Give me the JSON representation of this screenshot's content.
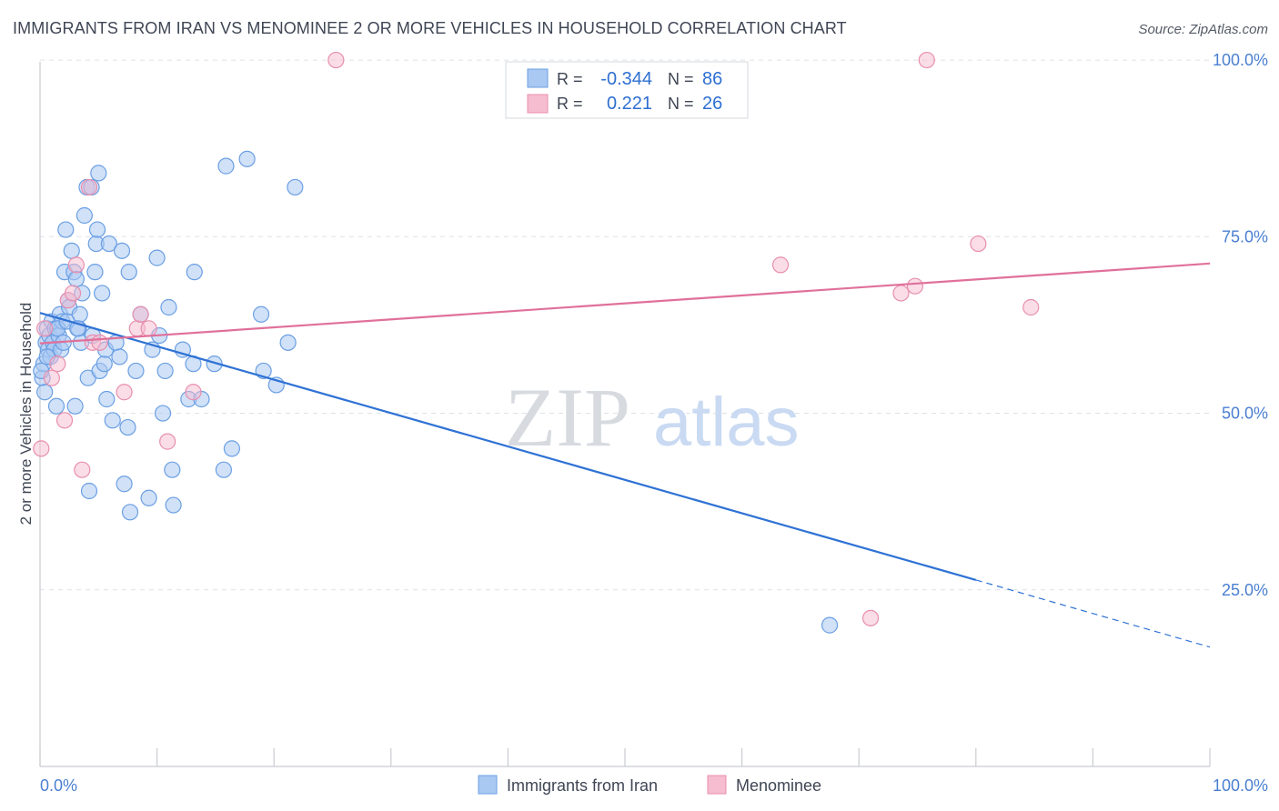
{
  "header": {
    "title": "IMMIGRANTS FROM IRAN VS MENOMINEE 2 OR MORE VEHICLES IN HOUSEHOLD CORRELATION CHART",
    "source": "Source: ZipAtlas.com"
  },
  "watermark": {
    "part1": "ZIP",
    "part2": "atlas"
  },
  "legend": {
    "rows": [
      {
        "r_label": "R =",
        "r_value": "-0.344",
        "n_label": "N =",
        "n_value": "86"
      },
      {
        "r_label": "R =",
        "r_value": "0.221",
        "n_label": "N =",
        "n_value": "26"
      }
    ]
  },
  "colors": {
    "iran_fill": "#a9c8f2",
    "iran_stroke": "#6b9fe3",
    "iran_line": "#2f72d4",
    "menominee_fill": "#f6bcd0",
    "menominee_stroke": "#e88fae",
    "menominee_line": "#e0709a",
    "tick_text": "#4a7fd0",
    "grid": "#dde1e7"
  },
  "chart_data": {
    "type": "scatter",
    "title": "IMMIGRANTS FROM IRAN VS MENOMINEE 2 OR MORE VEHICLES IN HOUSEHOLD CORRELATION CHART",
    "xlabel": "",
    "ylabel": "2 or more Vehicles in Household",
    "xlim": [
      0,
      100
    ],
    "ylim": [
      0,
      104
    ],
    "y_ticks": [
      {
        "value": 25,
        "label": "25.0%"
      },
      {
        "value": 50,
        "label": "50.0%"
      },
      {
        "value": 75,
        "label": "75.0%"
      },
      {
        "value": 100,
        "label": "100.0%"
      }
    ],
    "x_tick_labels": {
      "left": "0.0%",
      "right": "100.0%"
    },
    "x_minor_ticks": [
      0,
      10,
      20,
      30,
      40,
      50,
      60,
      70,
      80,
      90,
      100
    ],
    "grid": true,
    "legend_position": "top-center",
    "series": [
      {
        "name": "Immigrants from Iran",
        "points": [
          [
            0.2,
            55
          ],
          [
            0.4,
            53
          ],
          [
            0.3,
            57
          ],
          [
            0.5,
            60
          ],
          [
            0.6,
            62
          ],
          [
            0.7,
            59
          ],
          [
            0.8,
            61
          ],
          [
            0.9,
            58
          ],
          [
            1.0,
            63
          ],
          [
            1.1,
            60
          ],
          [
            1.2,
            59
          ],
          [
            1.3,
            62
          ],
          [
            1.4,
            51
          ],
          [
            1.6,
            61
          ],
          [
            1.7,
            64
          ],
          [
            1.8,
            59
          ],
          [
            1.9,
            63
          ],
          [
            2.0,
            60
          ],
          [
            2.1,
            70
          ],
          [
            2.2,
            76
          ],
          [
            2.4,
            66
          ],
          [
            2.5,
            65
          ],
          [
            2.7,
            73
          ],
          [
            2.9,
            70
          ],
          [
            3.0,
            51
          ],
          [
            3.1,
            69
          ],
          [
            3.3,
            62
          ],
          [
            3.4,
            64
          ],
          [
            3.5,
            60
          ],
          [
            3.6,
            67
          ],
          [
            3.8,
            78
          ],
          [
            4.0,
            82
          ],
          [
            4.1,
            55
          ],
          [
            4.2,
            39
          ],
          [
            4.4,
            82
          ],
          [
            4.5,
            61
          ],
          [
            4.7,
            70
          ],
          [
            4.8,
            74
          ],
          [
            4.9,
            76
          ],
          [
            5.0,
            84
          ],
          [
            5.1,
            56
          ],
          [
            5.3,
            67
          ],
          [
            5.5,
            57
          ],
          [
            5.6,
            59
          ],
          [
            5.7,
            52
          ],
          [
            5.9,
            74
          ],
          [
            6.2,
            49
          ],
          [
            6.5,
            60
          ],
          [
            6.8,
            58
          ],
          [
            7.0,
            73
          ],
          [
            7.2,
            40
          ],
          [
            7.5,
            48
          ],
          [
            7.6,
            70
          ],
          [
            7.7,
            36
          ],
          [
            8.2,
            56
          ],
          [
            8.6,
            64
          ],
          [
            9.3,
            38
          ],
          [
            9.6,
            59
          ],
          [
            10.0,
            72
          ],
          [
            10.2,
            61
          ],
          [
            10.5,
            50
          ],
          [
            10.7,
            56
          ],
          [
            11.0,
            65
          ],
          [
            11.3,
            42
          ],
          [
            11.4,
            37
          ],
          [
            12.2,
            59
          ],
          [
            12.7,
            52
          ],
          [
            13.1,
            57
          ],
          [
            13.2,
            70
          ],
          [
            13.8,
            52
          ],
          [
            14.9,
            57
          ],
          [
            15.7,
            42
          ],
          [
            15.9,
            85
          ],
          [
            16.4,
            45
          ],
          [
            17.7,
            86
          ],
          [
            18.9,
            64
          ],
          [
            19.1,
            56
          ],
          [
            20.2,
            54
          ],
          [
            21.2,
            60
          ],
          [
            21.8,
            82
          ],
          [
            67.5,
            20
          ],
          [
            0.1,
            56
          ],
          [
            0.6,
            58
          ],
          [
            1.5,
            62
          ],
          [
            2.3,
            63
          ],
          [
            3.2,
            62
          ]
        ],
        "trend": {
          "x": [
            0,
            80
          ],
          "y": [
            64.2,
            26.4
          ],
          "dashed_to": [
            100,
            16.9
          ]
        }
      },
      {
        "name": "Menominee",
        "points": [
          [
            0.1,
            45
          ],
          [
            0.4,
            62
          ],
          [
            1.0,
            55
          ],
          [
            1.5,
            57
          ],
          [
            2.1,
            49
          ],
          [
            2.4,
            66
          ],
          [
            2.8,
            67
          ],
          [
            3.1,
            71
          ],
          [
            3.6,
            42
          ],
          [
            4.2,
            82
          ],
          [
            4.5,
            60
          ],
          [
            5.1,
            60
          ],
          [
            7.2,
            53
          ],
          [
            8.3,
            62
          ],
          [
            8.6,
            64
          ],
          [
            9.3,
            62
          ],
          [
            10.9,
            46
          ],
          [
            13.1,
            53
          ],
          [
            25.3,
            100
          ],
          [
            63.3,
            71
          ],
          [
            71.0,
            21
          ],
          [
            73.6,
            67
          ],
          [
            74.8,
            68
          ],
          [
            75.8,
            100
          ],
          [
            80.2,
            74
          ],
          [
            84.7,
            65
          ]
        ],
        "trend": {
          "x": [
            0,
            100
          ],
          "y": [
            59.9,
            71.2
          ]
        }
      }
    ]
  },
  "bottom_legend": {
    "items": [
      {
        "label": "Immigrants from Iran"
      },
      {
        "label": "Menominee"
      }
    ]
  }
}
